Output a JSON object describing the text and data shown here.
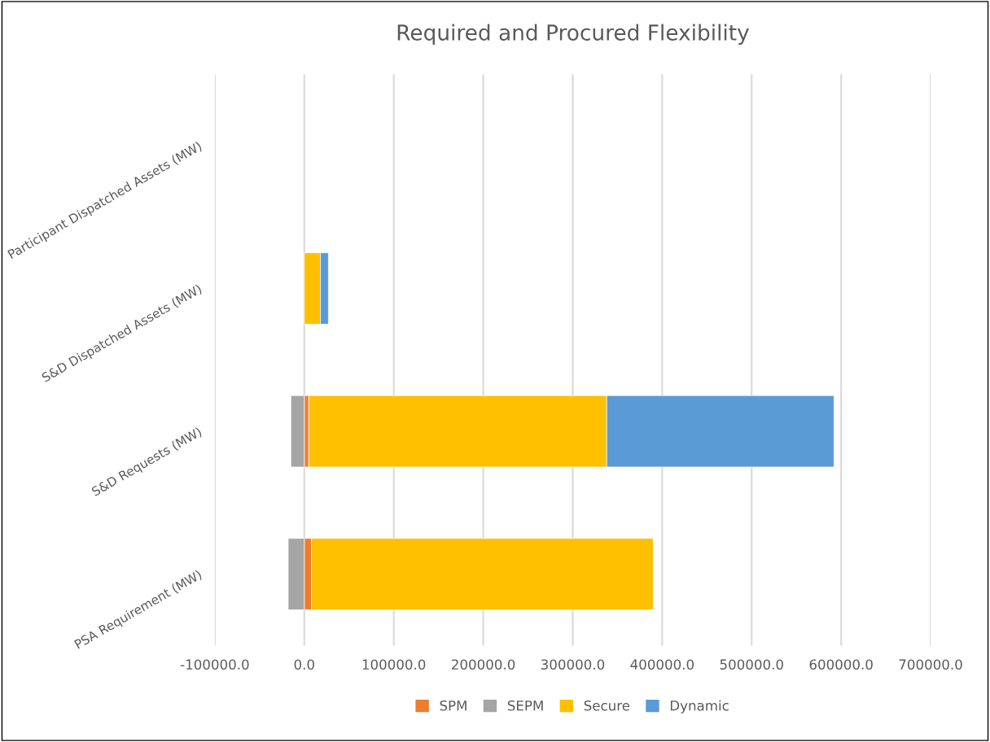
{
  "chart_data": {
    "type": "bar",
    "title": "Required and Procured Flexibility",
    "orientation": "horizontal",
    "stacked": true,
    "categories": [
      "Participant Dispatched Assets (MW)",
      "S&D Dispatched Assets (MW)",
      "S&D Requests (MW)",
      "PSA Requirement (MW)"
    ],
    "series": [
      {
        "name": "SPM",
        "color": "#ed7d31",
        "values": [
          null,
          null,
          5000,
          8000
        ]
      },
      {
        "name": "SEPM",
        "color": "#a5a5a5",
        "values": [
          null,
          null,
          -15000,
          -18000
        ]
      },
      {
        "name": "Secure",
        "color": "#ffc000",
        "values": [
          null,
          18000,
          333000,
          382000
        ]
      },
      {
        "name": "Dynamic",
        "color": "#5b9bd5",
        "values": [
          null,
          9000,
          254000,
          null
        ]
      }
    ],
    "xlim": [
      -100000,
      700000
    ],
    "xticks": [
      {
        "value": -100000,
        "label": "-100000.0"
      },
      {
        "value": 0,
        "label": "0.0"
      },
      {
        "value": 100000,
        "label": "100000.0"
      },
      {
        "value": 200000,
        "label": "200000.0"
      },
      {
        "value": 300000,
        "label": "300000.0"
      },
      {
        "value": 400000,
        "label": "400000.0"
      },
      {
        "value": 500000,
        "label": "500000.0"
      },
      {
        "value": 600000,
        "label": "600000.0"
      },
      {
        "value": 700000,
        "label": "700000.0"
      }
    ],
    "grid": "x",
    "legend": "bottom"
  }
}
